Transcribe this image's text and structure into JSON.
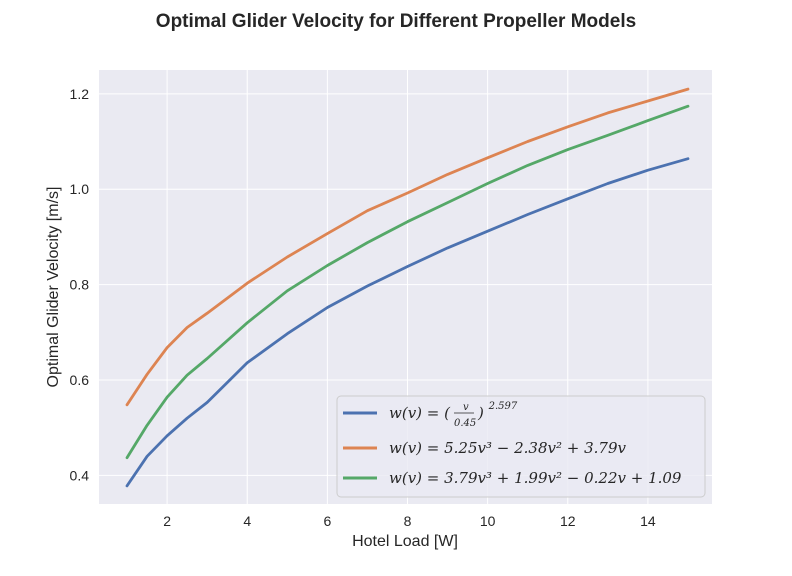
{
  "chart_data": {
    "type": "line",
    "title": "Optimal Glider Velocity for Different Propeller Models",
    "xlabel": "Hotel Load [W]",
    "ylabel": "Optimal Glider Velocity [m/s]",
    "xlim": [
      0.3,
      15.6
    ],
    "ylim": [
      0.34,
      1.25
    ],
    "xticks": [
      2,
      4,
      6,
      8,
      10,
      12,
      14
    ],
    "yticks": [
      0.4,
      0.6,
      0.8,
      1.0,
      1.2
    ],
    "xtick_labels": [
      "2",
      "4",
      "6",
      "8",
      "10",
      "12",
      "14"
    ],
    "ytick_labels": [
      "0.4",
      "0.6",
      "0.8",
      "1.0",
      "1.2"
    ],
    "grid": true,
    "legend_position": "lower-right",
    "background_color": "#eaeaf2",
    "x": [
      1.0,
      1.5,
      2.0,
      2.5,
      3.0,
      4.0,
      5.0,
      6.0,
      7.0,
      8.0,
      9.0,
      10.0,
      11.0,
      12.0,
      13.0,
      14.0,
      15.0
    ],
    "series": [
      {
        "color": "#4c72b0",
        "values": [
          0.378,
          0.44,
          0.483,
          0.52,
          0.553,
          0.636,
          0.697,
          0.752,
          0.797,
          0.838,
          0.877,
          0.912,
          0.947,
          0.98,
          1.012,
          1.04,
          1.064
        ]
      },
      {
        "color": "#dd8452",
        "values": [
          0.548,
          0.612,
          0.668,
          0.71,
          0.74,
          0.803,
          0.858,
          0.907,
          0.955,
          0.992,
          1.031,
          1.066,
          1.1,
          1.131,
          1.16,
          1.185,
          1.21
        ]
      },
      {
        "color": "#55a868",
        "values": [
          0.437,
          0.505,
          0.564,
          0.61,
          0.645,
          0.72,
          0.787,
          0.84,
          0.888,
          0.932,
          0.972,
          1.012,
          1.05,
          1.083,
          1.113,
          1.144,
          1.174
        ]
      }
    ],
    "legend": [
      {
        "prefix": "w(v) = (",
        "frac_num": "v",
        "frac_den": "0.45",
        "suffix": ")",
        "sup": "2.597"
      },
      {
        "text": "w(v) = 5.25v³ − 2.38v² + 3.79v"
      },
      {
        "text": "w(v) = 3.79v³ + 1.99v² − 0.22v + 1.09"
      }
    ]
  }
}
